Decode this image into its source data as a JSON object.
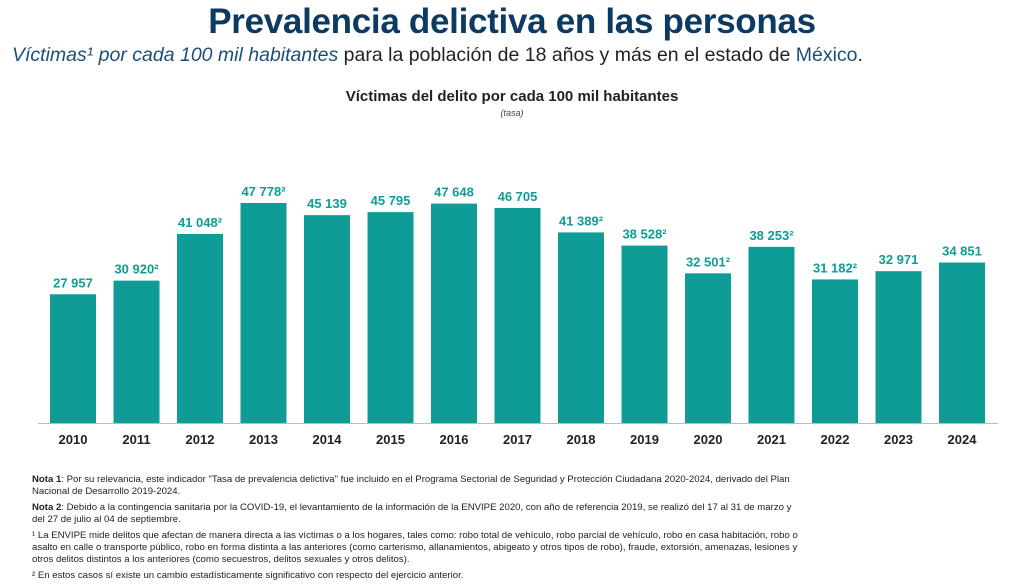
{
  "header": {
    "title": "Prevalencia delictiva en las personas",
    "subtitle_italic": "Víctimas¹ por cada 100 mil habitantes",
    "subtitle_rest": " para la población de 18 años y más en el estado de ",
    "subtitle_state": "México",
    "subtitle_end": "."
  },
  "chart_data": {
    "type": "bar",
    "title": "Víctimas del delito por cada 100 mil habitantes",
    "subtitle": "(tasa)",
    "xlabel": "",
    "ylabel": "",
    "ylim": [
      0,
      50000
    ],
    "grid": false,
    "bar_color": "#0f9c96",
    "categories": [
      "2010",
      "2011",
      "2012",
      "2013",
      "2014",
      "2015",
      "2016",
      "2017",
      "2018",
      "2019",
      "2020",
      "2021",
      "2022",
      "2023",
      "2024"
    ],
    "values": [
      27957,
      30920,
      41048,
      47778,
      45139,
      45795,
      47648,
      46705,
      41389,
      38528,
      32501,
      38253,
      31182,
      32971,
      34851
    ],
    "labels": [
      "27 957",
      "30 920²",
      "41 048²",
      "47 778²",
      "45 139",
      "45 795",
      "47 648",
      "46 705",
      "41 389²",
      "38 528²",
      "32 501²",
      "38 253²",
      "31 182²",
      "32 971",
      "34 851"
    ]
  },
  "notes": [
    {
      "bold": "Nota 1",
      "text": ": Por su relevancia, este indicador \"Tasa de prevalencia delictiva\" fue incluido en el Programa Sectorial de Seguridad y Protección Ciudadana 2020-2024, derivado del Plan Nacional de Desarrollo 2019-2024."
    },
    {
      "bold": "Nota 2",
      "text": ": Debido a la contingencia sanitaria por la COVID-19, el levantamiento de la información de la ENVIPE 2020, con año de referencia 2019, se realizó del 17 al 31 de marzo y del 27 de julio al 04 de septiembre."
    },
    {
      "bold": "",
      "text": "¹ La ENVIPE mide delitos que afectan de manera directa a las víctimas o a los hogares, tales como: robo total de vehículo, robo parcial de vehículo, robo en casa habitación, robo o asalto en calle o transporte público, robo en forma distinta a las anteriores (como carterismo, allanamientos, abigeato y otros tipos de robo), fraude, extorsión, amenazas, lesiones y otros delitos distintos a los anteriores (como secuestros, delitos sexuales y otros delitos)."
    },
    {
      "bold": "",
      "text": "² En estos casos sí existe un cambio estadísticamente significativo con respecto del ejercicio anterior."
    }
  ]
}
